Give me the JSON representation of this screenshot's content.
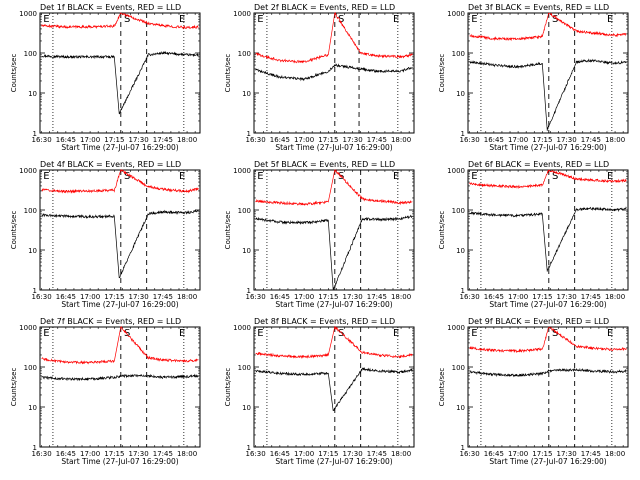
{
  "figure": {
    "ylabel": "Counts/sec",
    "xlabel": "Start Time (27-Jul-07 16:29:00)",
    "x_ticks": [
      "16:30",
      "16:45",
      "17:00",
      "17:15",
      "17:30",
      "17:45",
      "18:00"
    ],
    "y_ticks": [
      "1",
      "10",
      "100",
      "1000"
    ],
    "marker_labels": {
      "e": "E",
      "s": "S"
    },
    "colors": {
      "events": "#000000",
      "lld": "#ff0000"
    }
  },
  "chart_data": [
    {
      "type": "line",
      "title": "Det 1f BLACK = Events, RED = LLD",
      "xlabel": "Start Time (27-Jul-07 16:29:00)",
      "ylabel": "Counts/sec",
      "xlim": [
        "16:29",
        "18:08"
      ],
      "ylim": [
        1,
        1000
      ],
      "yscale": "log",
      "dashed_lines": [
        "17:19",
        "17:35"
      ],
      "dotted_lines": [
        "16:37",
        "17:58"
      ],
      "markers": [
        {
          "label": "E",
          "x": "16:31"
        },
        {
          "label": "S",
          "x": "17:21"
        },
        {
          "label": "E",
          "x": "17:55"
        }
      ],
      "series": [
        {
          "name": "Events",
          "color": "#000000",
          "x": [
            "16:30",
            "16:45",
            "17:00",
            "17:15",
            "17:18",
            "17:36",
            "17:45",
            "18:00",
            "18:07"
          ],
          "y": [
            85,
            80,
            80,
            80,
            3,
            90,
            100,
            90,
            90
          ]
        },
        {
          "name": "LLD",
          "color": "#ff0000",
          "x": [
            "16:30",
            "16:45",
            "17:00",
            "17:15",
            "17:19",
            "17:36",
            "17:45",
            "18:00",
            "18:07"
          ],
          "y": [
            480,
            450,
            450,
            470,
            1000,
            550,
            480,
            430,
            450
          ]
        }
      ]
    },
    {
      "type": "line",
      "title": "Det 2f BLACK = Events, RED = LLD",
      "xlabel": "Start Time (27-Jul-07 16:29:00)",
      "ylabel": "Counts/sec",
      "xlim": [
        "16:29",
        "18:08"
      ],
      "ylim": [
        1,
        1000
      ],
      "yscale": "log",
      "dashed_lines": [
        "17:19",
        "17:34"
      ],
      "dotted_lines": [
        "16:37",
        "17:58"
      ],
      "markers": [
        {
          "label": "E",
          "x": "16:31"
        },
        {
          "label": "S",
          "x": "17:21"
        },
        {
          "label": "E",
          "x": "17:55"
        }
      ],
      "series": [
        {
          "name": "Events",
          "color": "#000000",
          "x": [
            "16:30",
            "16:45",
            "17:00",
            "17:15",
            "17:19",
            "17:35",
            "17:45",
            "18:00",
            "18:07"
          ],
          "y": [
            38,
            25,
            22,
            35,
            50,
            40,
            35,
            35,
            45
          ]
        },
        {
          "name": "LLD",
          "color": "#ff0000",
          "x": [
            "16:30",
            "16:45",
            "17:00",
            "17:15",
            "17:19",
            "17:35",
            "17:45",
            "18:00",
            "18:07"
          ],
          "y": [
            95,
            65,
            60,
            90,
            1000,
            100,
            85,
            80,
            90
          ]
        }
      ]
    },
    {
      "type": "line",
      "title": "Det 3f BLACK = Events, RED = LLD",
      "xlabel": "Start Time (27-Jul-07 16:29:00)",
      "ylabel": "Counts/sec",
      "xlim": [
        "16:29",
        "18:08"
      ],
      "ylim": [
        1,
        1000
      ],
      "yscale": "log",
      "dashed_lines": [
        "17:19",
        "17:35"
      ],
      "dotted_lines": [
        "16:37",
        "17:58"
      ],
      "markers": [
        {
          "label": "E",
          "x": "16:31"
        },
        {
          "label": "S",
          "x": "17:21"
        },
        {
          "label": "E",
          "x": "17:55"
        }
      ],
      "series": [
        {
          "name": "Events",
          "color": "#000000",
          "x": [
            "16:30",
            "16:45",
            "17:00",
            "17:15",
            "17:18",
            "17:36",
            "17:45",
            "18:00",
            "18:07"
          ],
          "y": [
            60,
            50,
            45,
            55,
            1.2,
            60,
            65,
            55,
            60
          ]
        },
        {
          "name": "LLD",
          "color": "#ff0000",
          "x": [
            "16:30",
            "16:45",
            "17:00",
            "17:15",
            "17:19",
            "17:36",
            "17:45",
            "18:00",
            "18:07"
          ],
          "y": [
            270,
            230,
            220,
            260,
            1000,
            350,
            320,
            280,
            300
          ]
        }
      ]
    },
    {
      "type": "line",
      "title": "Det 4f BLACK = Events, RED = LLD",
      "xlabel": "Start Time (27-Jul-07 16:29:00)",
      "ylabel": "Counts/sec",
      "xlim": [
        "16:29",
        "18:08"
      ],
      "ylim": [
        1,
        1000
      ],
      "yscale": "log",
      "dashed_lines": [
        "17:19",
        "17:35"
      ],
      "dotted_lines": [
        "16:37",
        "17:58"
      ],
      "markers": [
        {
          "label": "E",
          "x": "16:31"
        },
        {
          "label": "S",
          "x": "17:21"
        },
        {
          "label": "E",
          "x": "17:55"
        }
      ],
      "series": [
        {
          "name": "Events",
          "color": "#000000",
          "x": [
            "16:30",
            "16:45",
            "17:00",
            "17:15",
            "17:18",
            "17:36",
            "17:45",
            "18:00",
            "18:07"
          ],
          "y": [
            75,
            70,
            68,
            70,
            2,
            80,
            90,
            85,
            95
          ]
        },
        {
          "name": "LLD",
          "color": "#ff0000",
          "x": [
            "16:30",
            "16:45",
            "17:00",
            "17:15",
            "17:19",
            "17:36",
            "17:45",
            "18:00",
            "18:07"
          ],
          "y": [
            320,
            290,
            300,
            310,
            1000,
            380,
            330,
            290,
            350
          ]
        }
      ]
    },
    {
      "type": "line",
      "title": "Det 5f BLACK = Events, RED = LLD",
      "xlabel": "Start Time (27-Jul-07 16:29:00)",
      "ylabel": "Counts/sec",
      "xlim": [
        "16:29",
        "18:08"
      ],
      "ylim": [
        1,
        1000
      ],
      "yscale": "log",
      "dashed_lines": [
        "17:19",
        "17:35"
      ],
      "dotted_lines": [
        "16:37",
        "17:58"
      ],
      "markers": [
        {
          "label": "E",
          "x": "16:31"
        },
        {
          "label": "S",
          "x": "17:21"
        },
        {
          "label": "E",
          "x": "17:55"
        }
      ],
      "series": [
        {
          "name": "Events",
          "color": "#000000",
          "x": [
            "16:30",
            "16:45",
            "17:00",
            "17:15",
            "17:18",
            "17:36",
            "17:45",
            "18:00",
            "18:07"
          ],
          "y": [
            60,
            50,
            48,
            55,
            1,
            60,
            58,
            60,
            70
          ]
        },
        {
          "name": "LLD",
          "color": "#ff0000",
          "x": [
            "16:30",
            "16:45",
            "17:00",
            "17:15",
            "17:19",
            "17:36",
            "17:45",
            "18:00",
            "18:07"
          ],
          "y": [
            170,
            150,
            140,
            160,
            1000,
            190,
            170,
            150,
            160
          ]
        }
      ]
    },
    {
      "type": "line",
      "title": "Det 6f BLACK = Events, RED = LLD",
      "xlabel": "Start Time (27-Jul-07 16:29:00)",
      "ylabel": "Counts/sec",
      "xlim": [
        "16:29",
        "18:08"
      ],
      "ylim": [
        1,
        1000
      ],
      "yscale": "log",
      "dashed_lines": [
        "17:19",
        "17:35"
      ],
      "dotted_lines": [
        "16:37",
        "17:58"
      ],
      "markers": [
        {
          "label": "E",
          "x": "16:31"
        },
        {
          "label": "S",
          "x": "17:21"
        },
        {
          "label": "E",
          "x": "17:55"
        }
      ],
      "series": [
        {
          "name": "Events",
          "color": "#000000",
          "x": [
            "16:30",
            "16:45",
            "17:00",
            "17:15",
            "17:18",
            "17:36",
            "17:45",
            "18:00",
            "18:07"
          ],
          "y": [
            85,
            75,
            72,
            80,
            3,
            100,
            110,
            100,
            110
          ]
        },
        {
          "name": "LLD",
          "color": "#ff0000",
          "x": [
            "16:30",
            "16:45",
            "17:00",
            "17:15",
            "17:19",
            "17:36",
            "17:45",
            "18:00",
            "18:07"
          ],
          "y": [
            450,
            400,
            380,
            420,
            1000,
            600,
            560,
            520,
            550
          ]
        }
      ]
    },
    {
      "type": "line",
      "title": "Det 7f BLACK = Events, RED = LLD",
      "xlabel": "Start Time (27-Jul-07 16:29:00)",
      "ylabel": "Counts/sec",
      "xlim": [
        "16:29",
        "18:08"
      ],
      "ylim": [
        1,
        1000
      ],
      "yscale": "log",
      "dashed_lines": [
        "17:19",
        "17:35"
      ],
      "dotted_lines": [
        "16:37",
        "17:58"
      ],
      "markers": [
        {
          "label": "E",
          "x": "16:31"
        },
        {
          "label": "S",
          "x": "17:21"
        },
        {
          "label": "E",
          "x": "17:55"
        }
      ],
      "series": [
        {
          "name": "Events",
          "color": "#000000",
          "x": [
            "16:30",
            "16:45",
            "17:00",
            "17:15",
            "17:19",
            "17:36",
            "17:45",
            "18:00",
            "18:07"
          ],
          "y": [
            55,
            50,
            50,
            55,
            60,
            60,
            55,
            58,
            60
          ]
        },
        {
          "name": "LLD",
          "color": "#ff0000",
          "x": [
            "16:30",
            "16:45",
            "17:00",
            "17:15",
            "17:19",
            "17:36",
            "17:45",
            "18:00",
            "18:07"
          ],
          "y": [
            160,
            130,
            130,
            140,
            1000,
            170,
            150,
            140,
            150
          ]
        }
      ]
    },
    {
      "type": "line",
      "title": "Det 8f BLACK = Events, RED = LLD",
      "xlabel": "Start Time (27-Jul-07 16:29:00)",
      "ylabel": "Counts/sec",
      "xlim": [
        "16:29",
        "18:08"
      ],
      "ylim": [
        1,
        1000
      ],
      "yscale": "log",
      "dashed_lines": [
        "17:19",
        "17:35"
      ],
      "dotted_lines": [
        "16:37",
        "17:58"
      ],
      "markers": [
        {
          "label": "E",
          "x": "16:31"
        },
        {
          "label": "S",
          "x": "17:21"
        },
        {
          "label": "E",
          "x": "17:55"
        }
      ],
      "series": [
        {
          "name": "Events",
          "color": "#000000",
          "x": [
            "16:30",
            "16:45",
            "17:00",
            "17:15",
            "17:18",
            "17:36",
            "17:45",
            "18:00",
            "18:07"
          ],
          "y": [
            80,
            70,
            65,
            70,
            8,
            90,
            80,
            75,
            85
          ]
        },
        {
          "name": "LLD",
          "color": "#ff0000",
          "x": [
            "16:30",
            "16:45",
            "17:00",
            "17:15",
            "17:19",
            "17:36",
            "17:45",
            "18:00",
            "18:07"
          ],
          "y": [
            220,
            190,
            180,
            200,
            1000,
            230,
            200,
            180,
            210
          ]
        }
      ]
    },
    {
      "type": "line",
      "title": "Det 9f BLACK = Events, RED = LLD",
      "xlabel": "Start Time (27-Jul-07 16:29:00)",
      "ylabel": "Counts/sec",
      "xlim": [
        "16:29",
        "18:08"
      ],
      "ylim": [
        1,
        1000
      ],
      "yscale": "log",
      "dashed_lines": [
        "17:19",
        "17:35"
      ],
      "dotted_lines": [
        "16:37",
        "17:58"
      ],
      "markers": [
        {
          "label": "E",
          "x": "16:31"
        },
        {
          "label": "S",
          "x": "17:21"
        },
        {
          "label": "E",
          "x": "17:55"
        }
      ],
      "series": [
        {
          "name": "Events",
          "color": "#000000",
          "x": [
            "16:30",
            "16:45",
            "17:00",
            "17:15",
            "17:19",
            "17:36",
            "17:45",
            "18:00",
            "18:07"
          ],
          "y": [
            75,
            65,
            62,
            68,
            80,
            85,
            80,
            75,
            80
          ]
        },
        {
          "name": "LLD",
          "color": "#ff0000",
          "x": [
            "16:30",
            "16:45",
            "17:00",
            "17:15",
            "17:19",
            "17:36",
            "17:45",
            "18:00",
            "18:07"
          ],
          "y": [
            300,
            260,
            250,
            280,
            1000,
            330,
            300,
            270,
            290
          ]
        }
      ]
    }
  ]
}
